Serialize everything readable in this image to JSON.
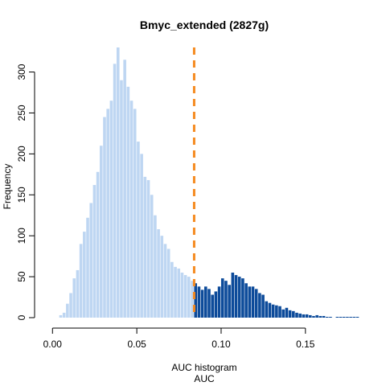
{
  "chart_data": {
    "type": "bar",
    "title": "Bmyc_extended (2827g)",
    "xlabel": "AUC histogram",
    "xlabel2": "AUC",
    "ylabel": "Frequency",
    "xlim": [
      -0.003,
      0.183
    ],
    "ylim": [
      0,
      330
    ],
    "x_ticks": [
      "0.00",
      "0.05",
      "0.10",
      "0.15"
    ],
    "y_ticks": [
      "0",
      "50",
      "100",
      "150",
      "200",
      "250",
      "300"
    ],
    "bin_width": 0.002,
    "bin_start": 0.0,
    "threshold": 0.084,
    "colors": {
      "below": "#bed6f2",
      "above": "#0d4b9a",
      "threshold_line": "#f58a1f"
    },
    "values": [
      0,
      0,
      3,
      6,
      17,
      30,
      48,
      58,
      90,
      105,
      122,
      140,
      162,
      178,
      210,
      245,
      255,
      265,
      310,
      330,
      290,
      315,
      282,
      265,
      255,
      215,
      200,
      172,
      168,
      150,
      125,
      108,
      100,
      90,
      84,
      68,
      62,
      60,
      55,
      52,
      50,
      45,
      42,
      38,
      34,
      38,
      35,
      28,
      32,
      38,
      48,
      45,
      40,
      55,
      52,
      50,
      48,
      42,
      38,
      38,
      35,
      30,
      28,
      20,
      18,
      16,
      15,
      14,
      10,
      12,
      9,
      8,
      6,
      5,
      4,
      4,
      3,
      2,
      3,
      2,
      2,
      1,
      1,
      0,
      1,
      1,
      1,
      1,
      1,
      1,
      1,
      0
    ]
  }
}
